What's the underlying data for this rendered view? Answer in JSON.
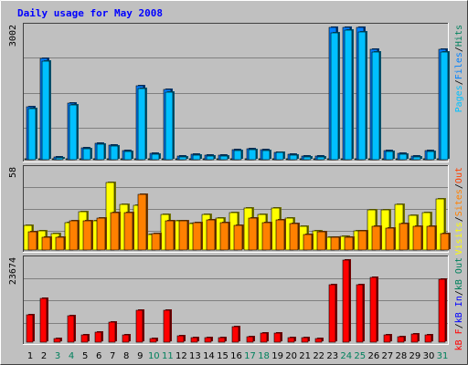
{
  "chart_data": {
    "type": "bar",
    "title": "Daily usage for May 2008",
    "categories": [
      "1",
      "2",
      "3",
      "4",
      "5",
      "6",
      "7",
      "8",
      "9",
      "10",
      "11",
      "12",
      "13",
      "14",
      "15",
      "16",
      "17",
      "18",
      "19",
      "20",
      "21",
      "22",
      "23",
      "24",
      "25",
      "26",
      "27",
      "28",
      "29",
      "30",
      "31"
    ],
    "weekend_days": [
      "3",
      "4",
      "10",
      "11",
      "17",
      "18",
      "24",
      "25",
      "31"
    ],
    "panels": [
      {
        "id": "top",
        "ymax": 3002,
        "ymax_label": "3002",
        "legend": [
          {
            "text": "Pages",
            "color": "#00c0ff"
          },
          {
            "text": "/",
            "color": "#000000"
          },
          {
            "text": "Files",
            "color": "#0080ff"
          },
          {
            "text": "/",
            "color": "#000000"
          },
          {
            "text": "Hits",
            "color": "#00805c"
          }
        ],
        "series": [
          {
            "name": "Hits",
            "color": "#00805c",
            "values": [
              8,
              10,
              5,
              10,
              5,
              5,
              5,
              5,
              8,
              5,
              7,
              5,
              5,
              5,
              5,
              5,
              5,
              5,
              5,
              5,
              5,
              5,
              12,
              16,
              12,
              15,
              5,
              5,
              5,
              5,
              15
            ]
          },
          {
            "name": "Files",
            "color": "#0080ff",
            "values": [
              1195,
              2296,
              53,
              1288,
              264,
              374,
              340,
              198,
              1680,
              139,
              1589,
              80,
              119,
              100,
              95,
              220,
              252,
              225,
              172,
              126,
              78,
              73,
              2997,
              3002,
              2997,
              2498,
              197,
              144,
              75,
              208,
              2502
            ]
          },
          {
            "name": "Pages",
            "color": "#00c0ff",
            "values": [
              1159,
              2240,
              46,
              1234,
              250,
              356,
              317,
              180,
              1611,
              125,
              1532,
              72,
              107,
              90,
              85,
              205,
              230,
              210,
              157,
              112,
              70,
              65,
              2887,
              2946,
              2894,
              2433,
              180,
              130,
              67,
              188,
              2438
            ]
          }
        ]
      },
      {
        "id": "middle",
        "ymax": 58,
        "ymax_label": "58",
        "legend": [
          {
            "text": "Visits",
            "color": "#ffff00"
          },
          {
            "text": "/",
            "color": "#000000"
          },
          {
            "text": "Sites",
            "color": "#ff8000"
          },
          {
            "text": "/",
            "color": "#000000"
          },
          {
            "text": "Out",
            "color": "#ff4000"
          }
        ],
        "series": [
          {
            "name": "Visits",
            "color": "#ffff00",
            "values": [
              18,
              14,
              12,
              20,
              28,
              21,
              49,
              33,
              32,
              11,
              26,
              21,
              19,
              26,
              23,
              27,
              30,
              26,
              30,
              23,
              17,
              14,
              9,
              10,
              14,
              29,
              29,
              33,
              25,
              27,
              37
            ]
          },
          {
            "name": "Sites",
            "color": "#ff8000",
            "values": [
              13,
              9,
              9,
              21,
              21,
              23,
              27,
              27,
              40,
              12,
              21,
              21,
              20,
              22,
              20,
              18,
              23,
              20,
              22,
              19,
              11,
              13,
              9,
              9,
              14,
              17,
              16,
              19,
              17,
              17,
              12
            ]
          }
        ]
      },
      {
        "id": "bottom",
        "ymax": 23674,
        "ymax_label": "23674",
        "legend": [
          {
            "text": "kB F",
            "color": "#ff0000"
          },
          {
            "text": "/",
            "color": "#000000"
          },
          {
            "text": "kB In",
            "color": "#0000ff"
          },
          {
            "text": "/",
            "color": "#000000"
          },
          {
            "text": "kB Out",
            "color": "#00805c"
          }
        ],
        "series": [
          {
            "name": "kB F",
            "color": "#ff0000",
            "values": [
              7800,
              12700,
              1000,
              7600,
              2000,
              2800,
              5800,
              2100,
              9100,
              1000,
              9200,
              1800,
              1400,
              1200,
              1300,
              4600,
              1500,
              2600,
              2500,
              1300,
              1400,
              1100,
              16500,
              23674,
              16700,
              18600,
              2100,
              1600,
              2300,
              2200,
              18100
            ]
          }
        ]
      }
    ]
  }
}
